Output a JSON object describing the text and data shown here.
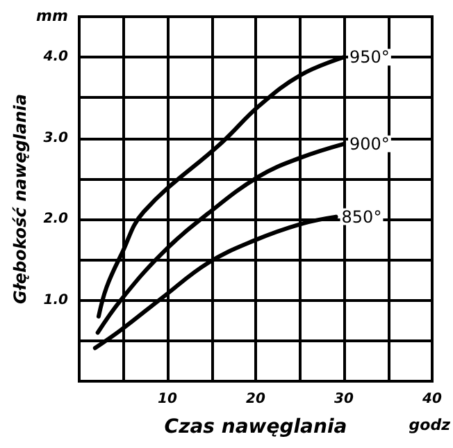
{
  "chart_data": {
    "type": "line",
    "xlabel": "Czas nawęglania",
    "ylabel": "Głębokość nawęglania",
    "annotations": [
      "mm",
      "godz"
    ],
    "xlim": [
      0,
      40
    ],
    "ylim": [
      0,
      4.5
    ],
    "xticks": [
      {
        "value": 5,
        "label": null
      },
      10,
      {
        "value": 15,
        "label": null
      },
      20,
      {
        "value": 25,
        "label": null
      },
      30,
      {
        "value": 35,
        "label": null
      },
      40
    ],
    "yticks": [
      {
        "value": 0.5,
        "label": null
      },
      {
        "value": 1,
        "label": "1.0"
      },
      {
        "value": 1.5,
        "label": null
      },
      {
        "value": 2,
        "label": "2.0"
      },
      {
        "value": 2.5,
        "label": null
      },
      {
        "value": 3,
        "label": "3.0"
      },
      {
        "value": 3.5,
        "label": null
      },
      {
        "value": 4,
        "label": "4.0"
      }
    ],
    "grid": true,
    "legend": false,
    "marker": "none",
    "line_style": "solid",
    "series": [
      {
        "name": "950°",
        "color": "#000000",
        "x": [
          2.2,
          3.1,
          4.8,
          7.3,
          16.2,
          20.4,
          25.1,
          30
        ],
        "values": [
          0.8,
          1.16,
          1.57,
          2.09,
          2.95,
          3.4,
          3.78,
          4.0
        ]
      },
      {
        "name": "900°",
        "color": "#000000",
        "x": [
          2.1,
          4.7,
          9.4,
          14.6,
          20.4,
          25.1,
          30
        ],
        "values": [
          0.6,
          1.0,
          1.58,
          2.07,
          2.53,
          2.76,
          2.93
        ]
      },
      {
        "name": "850°",
        "color": "#000000",
        "x": [
          1.8,
          4.7,
          9.4,
          14.6,
          19.9,
          25.1,
          29.1
        ],
        "values": [
          0.41,
          0.63,
          1.03,
          1.46,
          1.74,
          1.94,
          2.03
        ]
      }
    ]
  }
}
